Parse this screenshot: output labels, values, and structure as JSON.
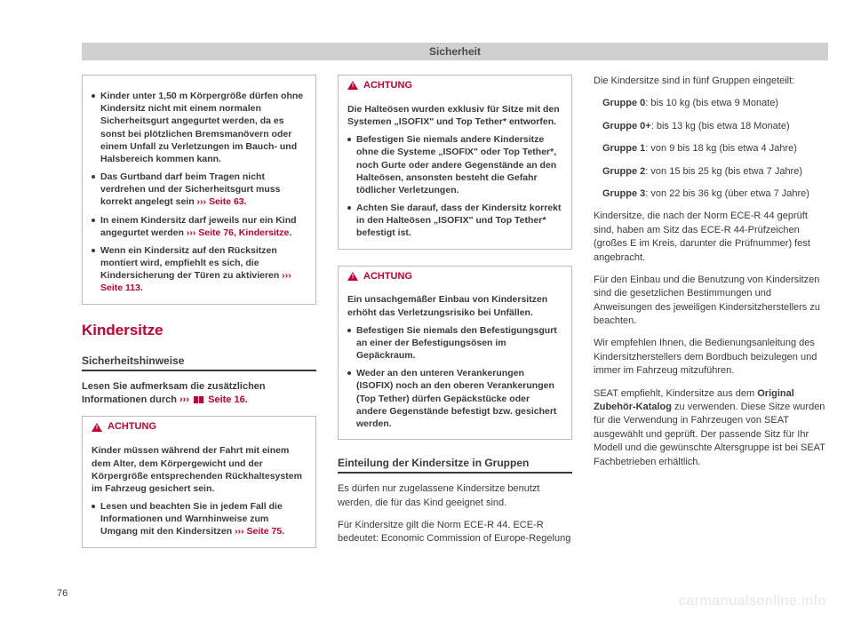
{
  "header": {
    "title": "Sicherheit"
  },
  "page_number": "76",
  "watermark": "carmanualsonline.info",
  "col1": {
    "box1": {
      "items": [
        {
          "pre": "Kinder unter 1,50 m Körpergröße dürfen ohne Kindersitz nicht mit einem normalen Sicherheitsgurt angegurtet werden, da es sonst bei plötzlichen Bremsmanövern oder einem Unfall zu Verletzungen im Bauch- und Halsbereich kommen kann."
        },
        {
          "pre": "Das Gurtband darf beim Tragen nicht verdrehen und der Sicherheitsgurt muss korrekt angelegt sein ",
          "ref": "››› Seite 63",
          "post": "."
        },
        {
          "pre": "In einem Kindersitz darf jeweils nur ein Kind angegurtet werden ",
          "ref": "››› Seite 76, Kindersitze",
          "post": "."
        },
        {
          "pre": "Wenn ein Kindersitz auf den Rücksitzen montiert wird, empfiehlt es sich, die Kindersicherung der Türen zu aktivieren ",
          "ref": "››› Seite 113",
          "post": "."
        }
      ]
    },
    "heading": "Kindersitze",
    "subheading": "Sicherheitshinweise",
    "lead_pre": "Lesen Sie aufmerksam die zusätzlichen Informationen durch ",
    "lead_ref1": "›››",
    "lead_ref2": " Seite 16",
    "box2": {
      "title": "ACHTUNG",
      "lead": "Kinder müssen während der Fahrt mit einem dem Alter, dem Körpergewicht und der Körpergröße entsprechenden Rückhaltesystem im Fahrzeug gesichert sein.",
      "items": [
        {
          "pre": "Lesen und beachten Sie in jedem Fall die Informationen und Warnhinweise zum Umgang mit den Kindersitzen ",
          "ref": "››› Seite 75",
          "post": "."
        }
      ]
    }
  },
  "col2": {
    "box1": {
      "title": "ACHTUNG",
      "lead": "Die Halteösen wurden exklusiv für Sitze mit den Systemen „ISOFIX\" und Top Tether* entworfen.",
      "items": [
        {
          "pre": "Befestigen Sie niemals andere Kindersitze ohne die Systeme „ISOFIX\" oder Top Tether*, noch Gurte oder andere Gegenstände an den Halteösen, ansonsten besteht die Gefahr tödlicher Verletzungen."
        },
        {
          "pre": "Achten Sie darauf, dass der Kindersitz korrekt in den Halteösen „ISOFIX\" und Top Tether* befestigt ist."
        }
      ]
    },
    "box2": {
      "title": "ACHTUNG",
      "lead": "Ein unsachgemäßer Einbau von Kindersitzen erhöht das Verletzungsrisiko bei Unfällen.",
      "items": [
        {
          "pre": "Befestigen Sie niemals den Befestigungsgurt an einer der Befestigungsösen im Gepäckraum."
        },
        {
          "pre": "Weder an den unteren Verankerungen (ISOFIX) noch an den oberen Verankerungen (Top Tether) dürfen Gepäckstücke oder andere Gegenstände befestigt bzw. gesichert werden."
        }
      ]
    },
    "subheading": "Einteilung der Kindersitze in Gruppen",
    "p1": "Es dürfen nur zugelassene Kindersitze benutzt werden, die für das Kind geeignet sind.",
    "p2": "Für Kindersitze gilt die Norm ECE-R 44. ECE-R bedeutet: Economic Commission of Europe-Regelung"
  },
  "col3": {
    "intro": "Die Kindersitze sind in fünf Gruppen eingeteilt:",
    "groups": [
      {
        "label": "Gruppe 0",
        "text": ": bis 10 kg (bis etwa 9 Monate)"
      },
      {
        "label": "Gruppe 0+",
        "text": ": bis 13 kg (bis etwa 18 Monate)"
      },
      {
        "label": "Gruppe 1",
        "text": ": von 9 bis 18 kg (bis etwa 4 Jahre)"
      },
      {
        "label": "Gruppe 2",
        "text": ": von 15 bis 25 kg (bis etwa 7 Jahre)"
      },
      {
        "label": "Gruppe 3",
        "text": ": von 22 bis 36 kg (über etwa 7 Jahre)"
      }
    ],
    "p1": "Kindersitze, die nach der Norm ECE-R 44 geprüft sind, haben am Sitz das ECE-R 44-Prüfzeichen (großes E im Kreis, darunter die Prüfnummer) fest angebracht.",
    "p2": "Für den Einbau und die Benutzung von Kindersitzen sind die gesetzlichen Bestimmungen und Anweisungen des jeweiligen Kindersitzherstellers zu beachten.",
    "p3": "Wir empfehlen Ihnen, die Bedienungsanleitung des Kindersitzherstellers dem Bordbuch beizulegen und immer im Fahrzeug mitzuführen.",
    "p4_pre": "SEAT empfiehlt, Kindersitze aus dem ",
    "p4_bold": "Original Zubehör-Katalog",
    "p4_post": " zu verwenden. Diese Sitze wurden für die Verwendung in Fahrzeugen von SEAT ausgewählt und geprüft. Der passende Sitz für Ihr Modell und die gewünschte Altersgruppe ist bei SEAT Fachbetrieben erhältlich."
  }
}
